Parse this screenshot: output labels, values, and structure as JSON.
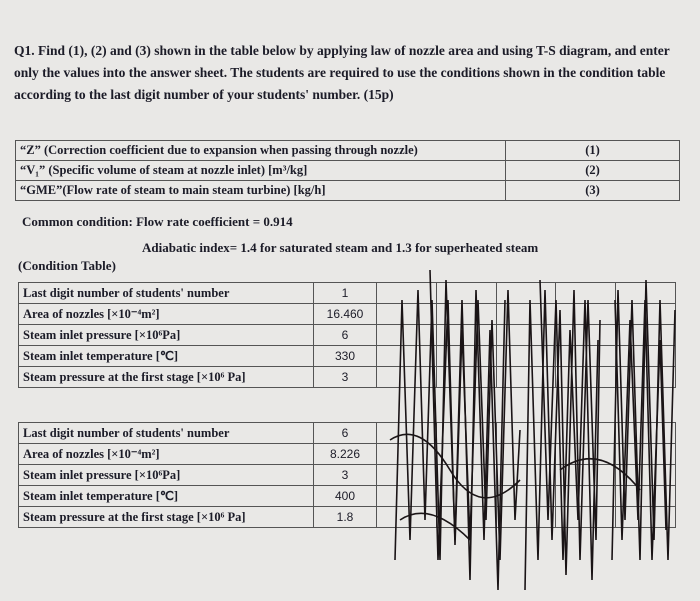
{
  "question": "Q1. Find (1), (2) and (3) shown in the table below by applying law of nozzle area and using T-S diagram, and enter only the values into the answer sheet. The students are required to use the conditions shown in the condition table according to the last digit number of your students' number. (15p)",
  "answer_table": {
    "rows": [
      [
        "“Z” (Correction coefficient due to expansion when passing through nozzle)",
        "(1)"
      ],
      [
        "“V₁” (Specific volume of steam at nozzle inlet) [m³/kg]",
        "(2)"
      ],
      [
        "“GME”(Flow rate of steam to main steam turbine) [kg/h]",
        "(3)"
      ]
    ]
  },
  "common_condition": "Common condition: Flow rate coefficient = 0.914",
  "adiabatic_note": "Adiabatic index= 1.4 for saturated steam and 1.3 for superheated steam",
  "condition_table": {
    "label": "(Condition Table)",
    "blocks": [
      {
        "rows": [
          [
            "Last digit number of students' number",
            "1"
          ],
          [
            "Area of nozzles [×10⁻⁴m²]",
            "16.460"
          ],
          [
            "Steam inlet pressure [×10⁶Pa]",
            "6"
          ],
          [
            "Steam inlet temperature [℃]",
            "330"
          ],
          [
            "Steam pressure at the first stage [×10⁶ Pa]",
            "3"
          ]
        ]
      },
      {
        "rows": [
          [
            "Last digit number of students' number",
            "6"
          ],
          [
            "Area of nozzles [×10⁻⁴m²]",
            "8.226"
          ],
          [
            "Steam inlet pressure [×10⁶Pa]",
            "3"
          ],
          [
            "Steam inlet temperature [℃]",
            "400"
          ],
          [
            "Steam pressure at the first stage [×10⁶ Pa]",
            "1.8"
          ]
        ]
      }
    ]
  }
}
